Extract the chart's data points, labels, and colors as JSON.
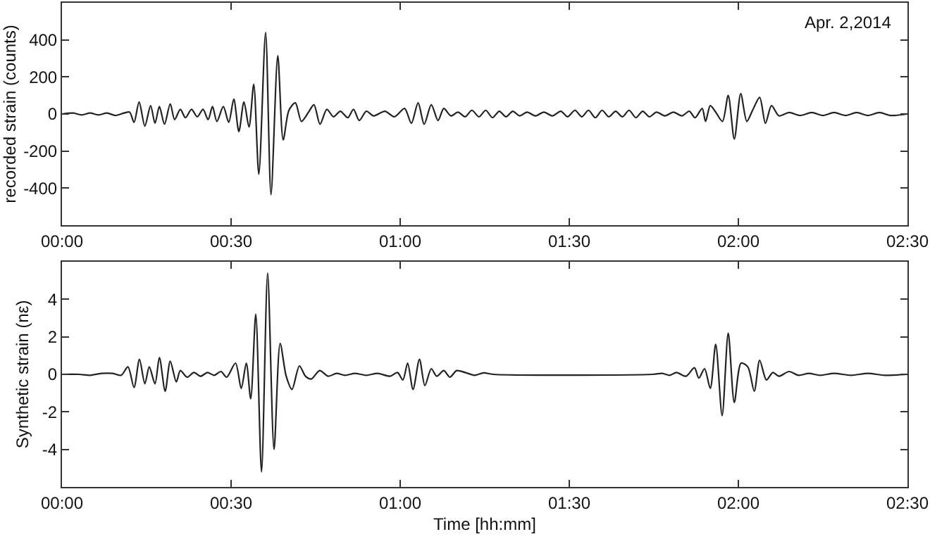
{
  "chart_data": [
    {
      "type": "line",
      "ylabel": "recorded strain (counts)",
      "annotations": [
        "Apr. 2,2014"
      ],
      "grid": false,
      "marker": "none",
      "line_style": "solid",
      "xlim": [
        0,
        2.5
      ],
      "xticks": [
        {
          "value": 0,
          "label": "00:00"
        },
        {
          "value": 0.5,
          "label": "00:30"
        },
        {
          "value": 1,
          "label": "01:00"
        },
        {
          "value": 1.5,
          "label": "01:30"
        },
        {
          "value": 2,
          "label": "02:00"
        },
        {
          "value": 2.5,
          "label": "02:30"
        }
      ],
      "ylim": [
        -600,
        600
      ],
      "yticks": [
        -400,
        -200,
        0,
        200,
        400
      ],
      "series": [
        {
          "color": "#222222",
          "x": [
            0,
            0.033,
            0.058,
            0.083,
            0.108,
            0.133,
            0.158,
            0.183,
            0.2,
            0.213,
            0.228,
            0.245,
            0.262,
            0.275,
            0.288,
            0.303,
            0.32,
            0.333,
            0.35,
            0.365,
            0.383,
            0.4,
            0.417,
            0.432,
            0.445,
            0.458,
            0.477,
            0.493,
            0.508,
            0.523,
            0.538,
            0.553,
            0.567,
            0.582,
            0.602,
            0.618,
            0.638,
            0.654,
            0.671,
            0.69,
            0.708,
            0.729,
            0.745,
            0.763,
            0.783,
            0.803,
            0.823,
            0.845,
            0.862,
            0.879,
            0.9,
            0.921,
            0.955,
            0.983,
            1.013,
            1.033,
            1.053,
            1.071,
            1.092,
            1.112,
            1.129,
            1.15,
            1.171,
            1.192,
            1.212,
            1.233,
            1.253,
            1.273,
            1.293,
            1.313,
            1.333,
            1.353,
            1.375,
            1.4,
            1.425,
            1.45,
            1.475,
            1.495,
            1.517,
            1.537,
            1.557,
            1.577,
            1.597,
            1.617,
            1.637,
            1.657,
            1.677,
            1.697,
            1.717,
            1.737,
            1.758,
            1.783,
            1.808,
            1.833,
            1.855,
            1.872,
            1.893,
            1.903,
            1.917,
            1.933,
            1.953,
            1.97,
            1.988,
            2.007,
            2.025,
            2.042,
            2.063,
            2.08,
            2.098,
            2.12,
            2.15,
            2.183,
            2.217,
            2.25,
            2.283,
            2.317,
            2.35,
            2.383,
            2.417,
            2.45,
            2.5
          ],
          "values": [
            0,
            5,
            -5,
            5,
            -5,
            5,
            -8,
            5,
            10,
            -45,
            65,
            -65,
            45,
            -50,
            40,
            -55,
            55,
            -30,
            25,
            -20,
            25,
            -15,
            25,
            -30,
            40,
            -40,
            40,
            -45,
            80,
            -95,
            65,
            -70,
            160,
            -325,
            440,
            -435,
            315,
            -140,
            20,
            60,
            -40,
            10,
            50,
            -55,
            25,
            -15,
            15,
            -20,
            25,
            -35,
            15,
            -10,
            15,
            -15,
            30,
            -50,
            60,
            -55,
            50,
            -35,
            30,
            -10,
            10,
            -15,
            20,
            -15,
            20,
            -20,
            15,
            -15,
            15,
            -10,
            10,
            -10,
            10,
            -10,
            15,
            -15,
            20,
            -15,
            20,
            -20,
            20,
            -15,
            15,
            -15,
            20,
            -20,
            15,
            -15,
            10,
            -10,
            10,
            -10,
            15,
            -20,
            30,
            -40,
            45,
            10,
            -40,
            100,
            -135,
            110,
            -40,
            20,
            90,
            -50,
            45,
            -10,
            8,
            -8,
            8,
            -8,
            8,
            -8,
            8,
            -8,
            8,
            -8,
            0
          ]
        }
      ]
    },
    {
      "type": "line",
      "ylabel": "Synthetic strain (nε)",
      "xlabel": "Time [hh:mm]",
      "grid": false,
      "marker": "none",
      "line_style": "solid",
      "xlim": [
        0,
        2.5
      ],
      "xticks": [
        {
          "value": 0,
          "label": "00:00"
        },
        {
          "value": 0.5,
          "label": "00:30"
        },
        {
          "value": 1,
          "label": "01:00"
        },
        {
          "value": 1.5,
          "label": "01:30"
        },
        {
          "value": 2,
          "label": "02:00"
        },
        {
          "value": 2.5,
          "label": "02:30"
        }
      ],
      "ylim": [
        -6,
        6
      ],
      "yticks": [
        -4,
        -2,
        0,
        2,
        4
      ],
      "series": [
        {
          "color": "#222222",
          "x": [
            0,
            0.05,
            0.083,
            0.117,
            0.15,
            0.175,
            0.195,
            0.213,
            0.229,
            0.245,
            0.258,
            0.275,
            0.288,
            0.305,
            0.32,
            0.338,
            0.35,
            0.37,
            0.39,
            0.41,
            0.43,
            0.45,
            0.47,
            0.487,
            0.513,
            0.53,
            0.545,
            0.558,
            0.573,
            0.59,
            0.608,
            0.627,
            0.645,
            0.663,
            0.68,
            0.702,
            0.72,
            0.737,
            0.762,
            0.787,
            0.812,
            0.837,
            0.867,
            0.9,
            0.933,
            0.97,
            0.992,
            1.008,
            1.022,
            1.038,
            1.057,
            1.073,
            1.092,
            1.108,
            1.129,
            1.147,
            1.167,
            1.192,
            1.22,
            1.247,
            1.275,
            1.747,
            1.775,
            1.797,
            1.817,
            1.845,
            1.87,
            1.883,
            1.9,
            1.917,
            1.933,
            1.952,
            1.97,
            1.988,
            2.008,
            2.028,
            2.047,
            2.063,
            2.083,
            2.102,
            2.12,
            2.15,
            2.178,
            2.208,
            2.242,
            2.283,
            2.333,
            2.383,
            2.433,
            2.5
          ],
          "values": [
            0,
            0,
            -0.05,
            0.05,
            0.05,
            -0.05,
            0.4,
            -0.7,
            0.8,
            -0.5,
            0.4,
            -0.5,
            0.9,
            -0.9,
            0.7,
            -0.4,
            0.2,
            -0.15,
            0.1,
            -0.1,
            0.1,
            -0.05,
            0.15,
            -0.15,
            0.6,
            -0.75,
            0.6,
            -1.3,
            3.2,
            -5.2,
            5.4,
            -4.0,
            1.65,
            -0.1,
            -0.8,
            0.45,
            -0.1,
            -0.25,
            0.2,
            -0.1,
            0.05,
            -0.05,
            0.05,
            -0.05,
            0.05,
            -0.1,
            0.1,
            -0.3,
            0.6,
            -0.8,
            0.8,
            -0.6,
            0.3,
            -0.1,
            0.2,
            -0.15,
            0.2,
            0.1,
            -0.05,
            0.08,
            0,
            0,
            0.05,
            -0.05,
            0.1,
            -0.1,
            0.35,
            -0.2,
            0.3,
            -0.75,
            1.6,
            -2.2,
            2.2,
            -1.5,
            0.6,
            0.4,
            -0.9,
            0.75,
            -0.3,
            0.1,
            -0.1,
            0.15,
            -0.05,
            0.05,
            -0.05,
            0.05,
            -0.05,
            0.05,
            -0.05,
            0
          ]
        }
      ]
    }
  ]
}
